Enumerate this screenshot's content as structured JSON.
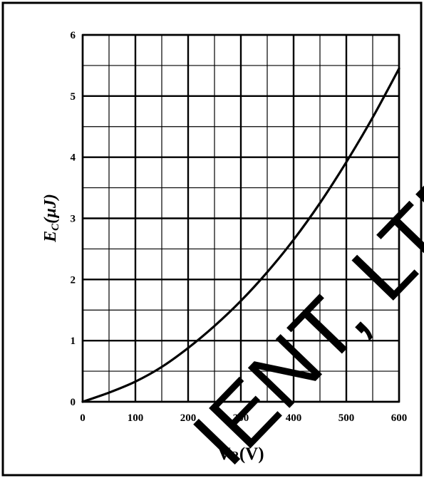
{
  "chart_data": {
    "type": "line",
    "title": "",
    "xlabel_main": "V",
    "xlabel_sub": "R",
    "xlabel_unit": "(V)",
    "ylabel_main": "E",
    "ylabel_sub": "C",
    "ylabel_unit": "(µJ)",
    "xlim": [
      0,
      600
    ],
    "ylim": [
      0,
      6
    ],
    "x_major_ticks": [
      0,
      100,
      200,
      300,
      400,
      500,
      600
    ],
    "y_major_ticks": [
      0,
      1,
      2,
      3,
      4,
      5,
      6
    ],
    "x_tick_labels": [
      "0",
      "100",
      "200",
      "300",
      "400",
      "500",
      "600"
    ],
    "y_tick_labels": [
      "0",
      "1",
      "2",
      "3",
      "4",
      "5",
      "6"
    ],
    "grid": true,
    "series": [
      {
        "color": "#000000",
        "x": [
          0,
          50,
          100,
          150,
          200,
          250,
          300,
          350,
          400,
          450,
          500,
          550,
          600
        ],
        "y": [
          0,
          0.15,
          0.33,
          0.57,
          0.88,
          1.24,
          1.65,
          2.12,
          2.65,
          3.25,
          3.92,
          4.65,
          5.45
        ]
      }
    ]
  },
  "watermark": {
    "text": "IENT, LTD."
  }
}
